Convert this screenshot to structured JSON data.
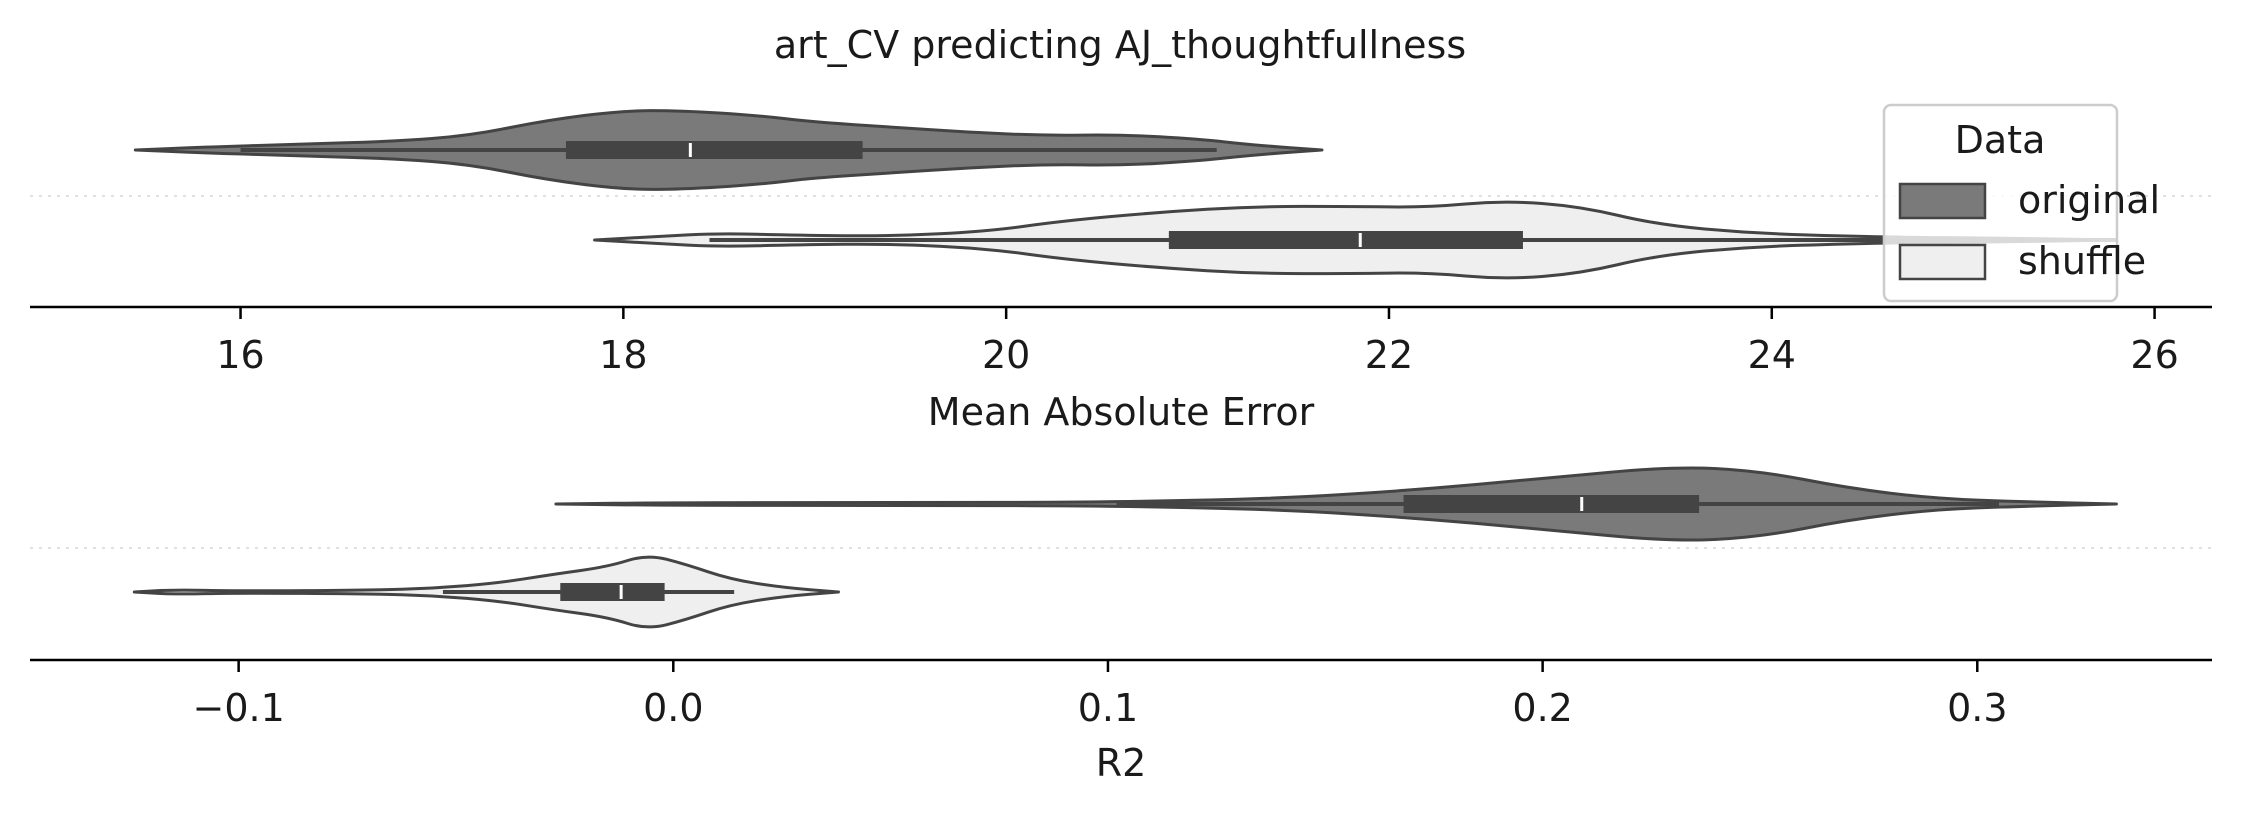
{
  "figure_title": "art_CV predicting AJ_thoughtfullness",
  "legend": {
    "title": "Data",
    "placement": "top-right",
    "entries": [
      {
        "label": "original",
        "color": "#7a7a7a"
      },
      {
        "label": "shuffle",
        "color": "#efefef"
      }
    ]
  },
  "chart_data": [
    {
      "type": "violin",
      "orientation": "horizontal",
      "xlabel": "Mean Absolute Error",
      "xlim": [
        14.9,
        26.3
      ],
      "xticks": [
        16,
        18,
        20,
        22,
        24,
        26
      ],
      "xtick_labels": [
        "16",
        "18",
        "20",
        "22",
        "24",
        "26"
      ],
      "series": [
        {
          "name": "original",
          "color": "#7a7a7a",
          "extent": [
            15.45,
            21.65
          ],
          "whisker": [
            16.0,
            21.1
          ],
          "q1": 17.7,
          "median": 18.35,
          "q3": 19.25,
          "density": [
            [
              15.45,
              0
            ],
            [
              15.8,
              0.06
            ],
            [
              16.3,
              0.12
            ],
            [
              16.8,
              0.18
            ],
            [
              17.2,
              0.3
            ],
            [
              17.6,
              0.62
            ],
            [
              18.0,
              0.82
            ],
            [
              18.3,
              0.82
            ],
            [
              18.7,
              0.72
            ],
            [
              19.0,
              0.58
            ],
            [
              19.4,
              0.48
            ],
            [
              19.8,
              0.37
            ],
            [
              20.2,
              0.3
            ],
            [
              20.6,
              0.32
            ],
            [
              21.0,
              0.23
            ],
            [
              21.3,
              0.1
            ],
            [
              21.65,
              0
            ]
          ]
        },
        {
          "name": "shuffle",
          "color": "#efefef",
          "extent": [
            17.85,
            25.8
          ],
          "whisker": [
            18.45,
            25.8
          ],
          "q1": 20.85,
          "median": 21.85,
          "q3": 22.7,
          "density": [
            [
              17.85,
              0
            ],
            [
              18.2,
              0.08
            ],
            [
              18.5,
              0.14
            ],
            [
              18.9,
              0.1
            ],
            [
              19.4,
              0.08
            ],
            [
              19.9,
              0.18
            ],
            [
              20.3,
              0.4
            ],
            [
              20.8,
              0.58
            ],
            [
              21.3,
              0.7
            ],
            [
              21.8,
              0.7
            ],
            [
              22.2,
              0.68
            ],
            [
              22.6,
              0.82
            ],
            [
              23.0,
              0.7
            ],
            [
              23.4,
              0.32
            ],
            [
              23.9,
              0.14
            ],
            [
              24.4,
              0.08
            ],
            [
              24.8,
              0.05
            ],
            [
              25.2,
              0.04
            ],
            [
              25.8,
              0
            ]
          ]
        }
      ]
    },
    {
      "type": "violin",
      "orientation": "horizontal",
      "xlabel": "R2",
      "xlim": [
        -0.148,
        0.354
      ],
      "xticks": [
        -0.1,
        0.0,
        0.1,
        0.2,
        0.3
      ],
      "xtick_labels": [
        "−0.1",
        "0.0",
        "0.1",
        "0.2",
        "0.3"
      ],
      "series": [
        {
          "name": "original",
          "color": "#7a7a7a",
          "extent": [
            -0.027,
            0.332
          ],
          "whisker": [
            0.102,
            0.305
          ],
          "q1": 0.168,
          "median": 0.209,
          "q3": 0.236,
          "density": [
            [
              -0.027,
              0
            ],
            [
              0.0,
              0.03
            ],
            [
              0.05,
              0.03
            ],
            [
              0.1,
              0.04
            ],
            [
              0.14,
              0.12
            ],
            [
              0.17,
              0.3
            ],
            [
              0.2,
              0.55
            ],
            [
              0.23,
              0.82
            ],
            [
              0.25,
              0.72
            ],
            [
              0.27,
              0.35
            ],
            [
              0.29,
              0.12
            ],
            [
              0.31,
              0.05
            ],
            [
              0.332,
              0
            ]
          ]
        },
        {
          "name": "shuffle",
          "color": "#efefef",
          "extent": [
            -0.124,
            0.038
          ],
          "whisker": [
            -0.053,
            0.014
          ],
          "q1": -0.026,
          "median": -0.012,
          "q3": -0.002,
          "density": [
            [
              -0.124,
              0
            ],
            [
              -0.115,
              0.05
            ],
            [
              -0.1,
              0.02
            ],
            [
              -0.07,
              0.04
            ],
            [
              -0.055,
              0.08
            ],
            [
              -0.04,
              0.2
            ],
            [
              -0.028,
              0.38
            ],
            [
              -0.015,
              0.55
            ],
            [
              -0.006,
              0.82
            ],
            [
              0.003,
              0.6
            ],
            [
              0.013,
              0.28
            ],
            [
              0.025,
              0.1
            ],
            [
              0.038,
              0
            ]
          ]
        }
      ]
    }
  ]
}
